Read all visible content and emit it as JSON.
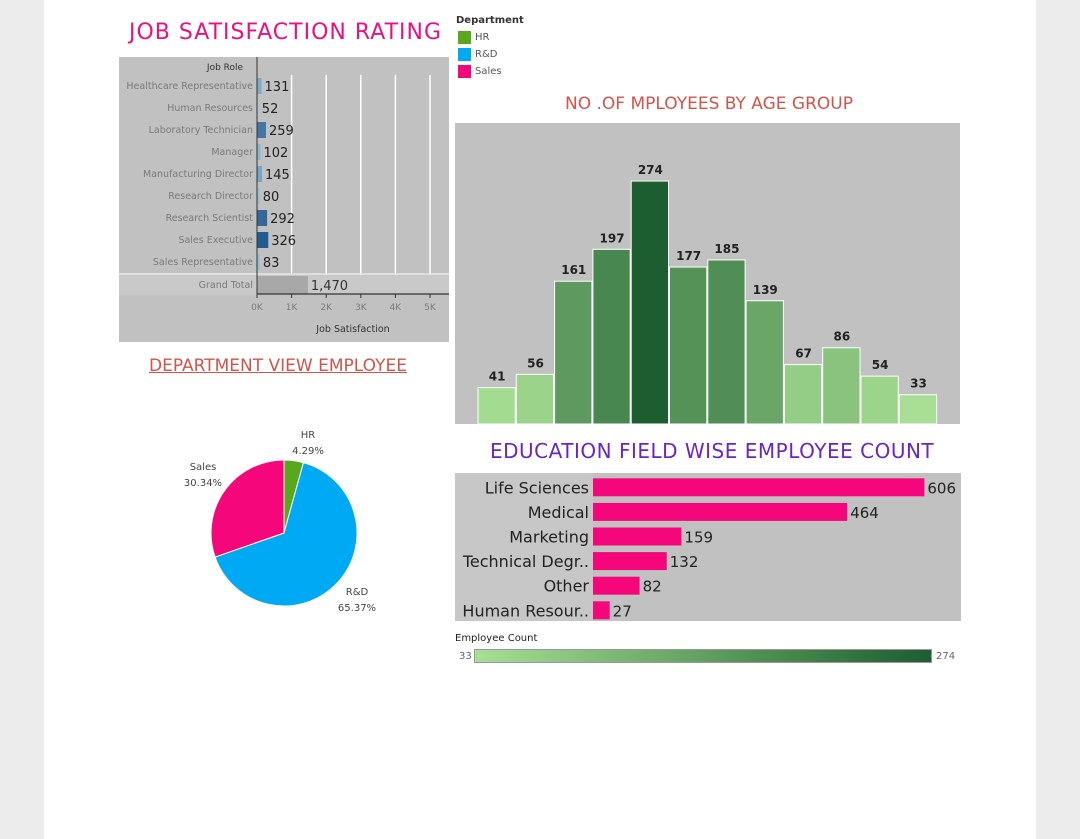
{
  "job_title": "JOB SATISFACTION RATING",
  "age_title": "NO .OF MPLOYEES BY AGE GROUP",
  "dept_title": "DEPARTMENT  VIEW  EMPLOYEE",
  "edu_title": "EDUCATION  FIELD  WISE  EMPLOYEE  COUNT",
  "legend": {
    "title": "Department",
    "items": [
      {
        "label": "HR",
        "color": "#58a81e"
      },
      {
        "label": "R&D",
        "color": "#00a9f4"
      },
      {
        "label": "Sales",
        "color": "#f5067a"
      }
    ]
  },
  "color_legend": {
    "title": "Employee Count",
    "min_label": "33",
    "max_label": "274",
    "color_low": "#a8df94",
    "color_high": "#1c5e30"
  },
  "chart_data": [
    {
      "type": "bar",
      "orientation": "horizontal",
      "header": "Job Role",
      "xlabel": "Job Satisfaction",
      "categories": [
        "Healthcare Representative",
        "Human Resources",
        "Laboratory Technician",
        "Manager",
        "Manufacturing Director",
        "Research Director",
        "Research Scientist",
        "Sales Executive",
        "Sales Representative"
      ],
      "values": [
        131,
        52,
        259,
        102,
        145,
        80,
        292,
        326,
        83
      ],
      "value_labels": [
        "131",
        "52",
        "259",
        "102",
        "145",
        "80",
        "292",
        "326",
        "83"
      ],
      "total_label": "Grand Total",
      "total": 1470,
      "total_text": "1,470",
      "xticks": [
        0,
        1000,
        2000,
        3000,
        4000,
        5000
      ],
      "xtick_labels": [
        "0K",
        "1K",
        "2K",
        "3K",
        "4K",
        "5K"
      ],
      "xlim": [
        0,
        5000
      ],
      "grid": true
    },
    {
      "type": "bar",
      "values": [
        41,
        56,
        161,
        197,
        274,
        177,
        185,
        139,
        67,
        86,
        54,
        33
      ],
      "ylim": [
        0,
        300
      ],
      "color_scale": [
        "#a8df94",
        "#1c5e30"
      ]
    },
    {
      "type": "pie",
      "slices": [
        {
          "label": "HR",
          "value": 4.29,
          "text": "4.29%",
          "color": "#58a81e"
        },
        {
          "label": "R&D",
          "value": 65.37,
          "text": "65.37%",
          "color": "#00a9f4"
        },
        {
          "label": "Sales",
          "value": 30.34,
          "text": "30.34%",
          "color": "#f5067a"
        }
      ]
    },
    {
      "type": "bar",
      "orientation": "horizontal",
      "categories": [
        "Life Sciences",
        "Medical",
        "Marketing",
        "Technical Degr..",
        "Other",
        "Human Resour.."
      ],
      "values": [
        606,
        464,
        159,
        132,
        82,
        27
      ],
      "xlim": [
        0,
        620
      ],
      "color": "#f5067a"
    }
  ]
}
